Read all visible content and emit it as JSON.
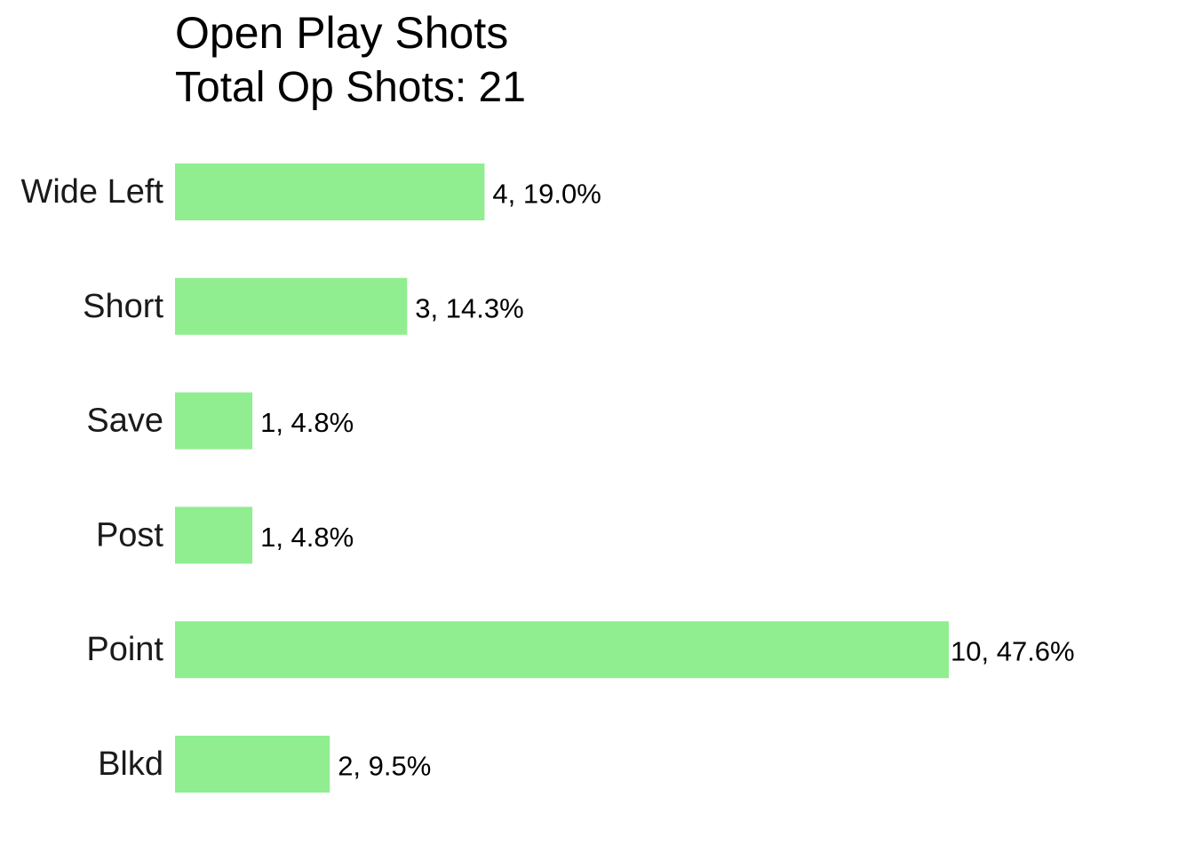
{
  "chart_data": {
    "type": "bar",
    "orientation": "horizontal",
    "title": "Open Play Shots",
    "subtitle": "Total Op Shots: 21",
    "categories": [
      "Wide Left",
      "Short",
      "Save",
      "Post",
      "Point",
      "Blkd"
    ],
    "values": [
      4,
      3,
      1,
      1,
      10,
      2
    ],
    "data_labels": [
      "4, 19.0%",
      "3, 14.3%",
      "1, 4.8%",
      "1, 4.8%",
      "10, 47.6%",
      "2, 9.5%"
    ],
    "xlabel": "",
    "ylabel": "",
    "xlim": [
      0,
      10
    ],
    "grid": false,
    "legend": "none",
    "bar_color": "#90EE90"
  }
}
